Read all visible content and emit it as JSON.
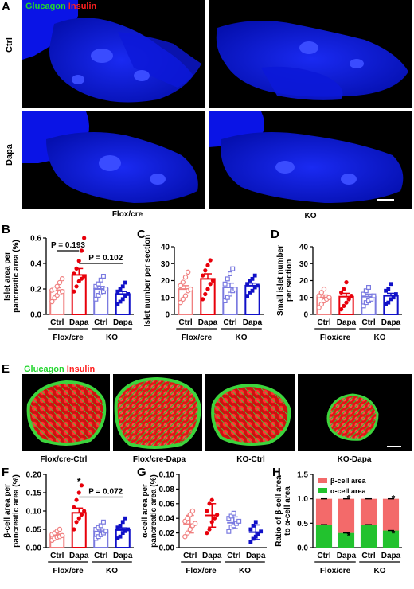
{
  "panel_letters": [
    "A",
    "B",
    "C",
    "D",
    "E",
    "F",
    "G",
    "H"
  ],
  "panelA": {
    "legend_green": "Glucagon",
    "legend_red": "Insulin",
    "row_labels": [
      "Ctrl",
      "Dapa"
    ],
    "col_labels": [
      "Flox/cre",
      "KO"
    ]
  },
  "panelE": {
    "legend_green": "Glucagon",
    "legend_red": "Insulin",
    "captions": [
      "Flox/cre-Ctrl",
      "Flox/cre-Dapa",
      "KO-Ctrl",
      "KO-Dapa"
    ]
  },
  "colors": {
    "ctrl_flox": "#f08080",
    "dapa_flox": "#e8000b",
    "ctrl_ko": "#7a7ae0",
    "dapa_ko": "#1010c8",
    "alpha_area": "#22c22e",
    "beta_area": "#f36a6a",
    "tissue_blue": "#0a14e6"
  },
  "chart_data": [
    {
      "id": "B",
      "type": "bar",
      "ylabel": "Islet area per\npancreatic area (%)",
      "ylim": [
        0,
        0.6
      ],
      "yticks": [
        "0.0",
        "0.2",
        "0.4",
        "0.6"
      ],
      "categories": [
        "Ctrl",
        "Dapa",
        "Ctrl",
        "Dapa"
      ],
      "groups": [
        "Flox/cre",
        "KO"
      ],
      "means": [
        0.19,
        0.31,
        0.2,
        0.16
      ],
      "sem": [
        0.02,
        0.05,
        0.02,
        0.02
      ],
      "points": [
        [
          0.1,
          0.13,
          0.15,
          0.17,
          0.18,
          0.19,
          0.2,
          0.22,
          0.25,
          0.28
        ],
        [
          0.18,
          0.22,
          0.26,
          0.28,
          0.3,
          0.32,
          0.36,
          0.42,
          0.5,
          0.6
        ],
        [
          0.12,
          0.15,
          0.17,
          0.18,
          0.2,
          0.22,
          0.24,
          0.27,
          0.3
        ],
        [
          0.08,
          0.1,
          0.12,
          0.14,
          0.16,
          0.18,
          0.2,
          0.22,
          0.25
        ]
      ],
      "annotations": [
        {
          "text": "P = 0.193"
        },
        {
          "text": "P = 0.102"
        }
      ]
    },
    {
      "id": "C",
      "type": "bar",
      "ylabel": "Islet number per section",
      "ylim": [
        0,
        40
      ],
      "yticks": [
        "0",
        "10",
        "20",
        "30",
        "40"
      ],
      "categories": [
        "Ctrl",
        "Dapa",
        "Ctrl",
        "Dapa"
      ],
      "groups": [
        "Flox/cre",
        "KO"
      ],
      "means": [
        15,
        21,
        16,
        17
      ],
      "sem": [
        2,
        3,
        2.5,
        1.5
      ],
      "points": [
        [
          7,
          9,
          11,
          14,
          15,
          17,
          19,
          22,
          25
        ],
        [
          9,
          12,
          15,
          18,
          20,
          23,
          26,
          29,
          32
        ],
        [
          8,
          10,
          12,
          14,
          15,
          18,
          21,
          24,
          27
        ],
        [
          11,
          13,
          14,
          16,
          17,
          18,
          20,
          21,
          23
        ]
      ]
    },
    {
      "id": "D",
      "type": "bar",
      "ylabel": "Small islet number\nper section",
      "ylim": [
        0,
        40
      ],
      "yticks": [
        "0",
        "10",
        "20",
        "30",
        "40"
      ],
      "categories": [
        "Ctrl",
        "Dapa",
        "Ctrl",
        "Dapa"
      ],
      "groups": [
        "Flox/cre",
        "KO"
      ],
      "means": [
        10,
        10.5,
        10.5,
        11
      ],
      "sem": [
        1.5,
        2,
        1.5,
        1.5
      ],
      "points": [
        [
          4,
          6,
          8,
          9,
          10,
          11,
          13,
          15
        ],
        [
          3,
          5,
          7,
          9,
          11,
          13,
          15,
          19
        ],
        [
          5,
          7,
          8,
          9,
          11,
          12,
          14,
          16
        ],
        [
          6,
          7,
          9,
          10,
          12,
          14,
          15,
          18
        ]
      ]
    },
    {
      "id": "F",
      "type": "bar",
      "ylabel": "β-cell area per\npancreatic area (%)",
      "ylim": [
        0,
        0.2
      ],
      "yticks": [
        "0.00",
        "0.05",
        "0.10",
        "0.15",
        "0.20"
      ],
      "categories": [
        "Ctrl",
        "Dapa",
        "Ctrl",
        "Dapa"
      ],
      "groups": [
        "Flox/cre",
        "KO"
      ],
      "means": [
        0.033,
        0.095,
        0.045,
        0.048
      ],
      "sem": [
        0.004,
        0.013,
        0.006,
        0.006
      ],
      "points": [
        [
          0.02,
          0.025,
          0.028,
          0.03,
          0.033,
          0.036,
          0.04,
          0.045,
          0.05
        ],
        [
          0.05,
          0.07,
          0.08,
          0.09,
          0.1,
          0.11,
          0.13,
          0.15,
          0.17
        ],
        [
          0.025,
          0.03,
          0.035,
          0.04,
          0.045,
          0.05,
          0.055,
          0.06,
          0.07
        ],
        [
          0.025,
          0.03,
          0.04,
          0.045,
          0.05,
          0.055,
          0.06,
          0.07,
          0.08
        ]
      ],
      "annotations": [
        {
          "text": "*"
        },
        {
          "text": "P = 0.072"
        }
      ]
    },
    {
      "id": "G",
      "type": "scatter",
      "ylabel": "α-cell area per\npancreatic area (%)",
      "ylim": [
        0,
        0.1
      ],
      "yticks": [
        "0.00",
        "0.02",
        "0.04",
        "0.06",
        "0.08",
        "0.10"
      ],
      "categories": [
        "Ctrl",
        "Dapa",
        "Ctrl",
        "Dapa"
      ],
      "groups": [
        "Flox/cre",
        "KO"
      ],
      "means": [
        0.032,
        0.044,
        0.034,
        0.021
      ],
      "sem": [
        0.012,
        0.016,
        0.008,
        0.01
      ],
      "points": [
        [
          0.015,
          0.02,
          0.025,
          0.03,
          0.033,
          0.036,
          0.04,
          0.045,
          0.05
        ],
        [
          0.02,
          0.025,
          0.035,
          0.04,
          0.045,
          0.05,
          0.06,
          0.065
        ],
        [
          0.022,
          0.028,
          0.03,
          0.033,
          0.036,
          0.04,
          0.043,
          0.047
        ],
        [
          0.008,
          0.012,
          0.015,
          0.018,
          0.022,
          0.025,
          0.03,
          0.035
        ]
      ]
    },
    {
      "id": "H",
      "type": "bar",
      "ylabel": "Ratio of β-cell area\nto α-cell area",
      "ylim": [
        0,
        1.5
      ],
      "yticks": [
        "0.0",
        "0.5",
        "1.0",
        "1.5"
      ],
      "categories": [
        "Ctrl",
        "Dapa",
        "Ctrl",
        "Dapa"
      ],
      "groups": [
        "Flox/cre",
        "KO"
      ],
      "stacked": true,
      "series": [
        {
          "name": "β-cell area",
          "values": [
            0.53,
            0.7,
            0.53,
            0.65
          ]
        },
        {
          "name": "α-cell area",
          "values": [
            0.47,
            0.3,
            0.47,
            0.35
          ]
        }
      ],
      "annotations": [
        {
          "text": "*"
        }
      ]
    }
  ]
}
